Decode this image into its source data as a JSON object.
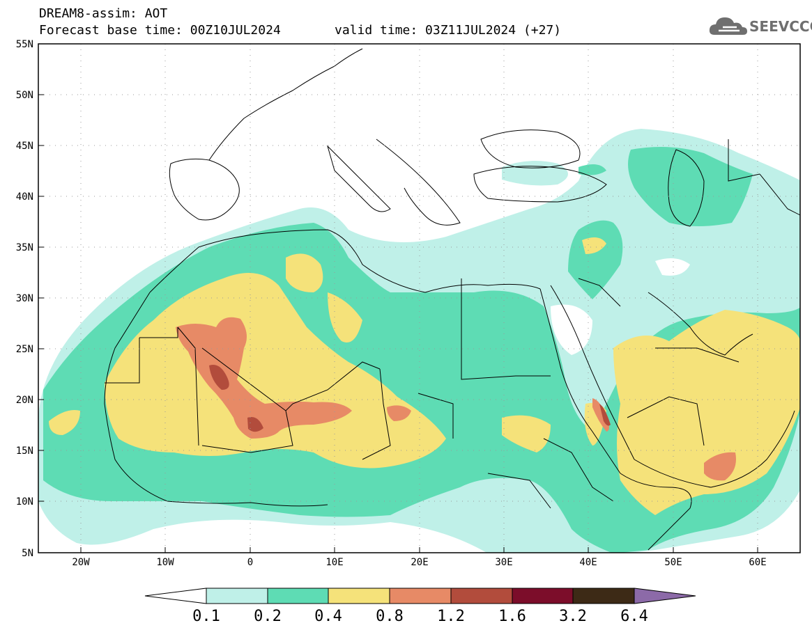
{
  "header": {
    "title": "DREAM8-assim: AOT",
    "base_time": "Forecast base time: 00Z10JUL2024",
    "valid_time": "valid time: 03Z11JUL2024 (+27)"
  },
  "logo": {
    "text": "SEEVCCC",
    "icon": "cloud-icon"
  },
  "map": {
    "lat_labels": [
      "55N",
      "50N",
      "45N",
      "40N",
      "35N",
      "30N",
      "25N",
      "20N",
      "15N",
      "10N",
      "5N"
    ],
    "lon_labels": [
      "20W",
      "10W",
      "0",
      "10E",
      "20E",
      "30E",
      "40E",
      "50E",
      "60E"
    ],
    "extent": {
      "lon": [
        -25,
        65
      ],
      "lat": [
        5,
        55
      ]
    },
    "grid": "dotted every 5 degrees"
  },
  "colorbar": {
    "labels": [
      "0.1",
      "0.2",
      "0.4",
      "0.8",
      "1.2",
      "1.6",
      "3.2",
      "6.4"
    ],
    "colors": [
      "#bff0e8",
      "#5edcb4",
      "#f5e27a",
      "#e78a66",
      "#b24c3c",
      "#7c0d2a",
      "#3d2a16",
      "#8c6aa8"
    ],
    "left_arrow_color": "#ffffff"
  },
  "colors": {
    "lvl1": "#bff0e8",
    "lvl2": "#5edcb4",
    "lvl3": "#f5e27a",
    "lvl4": "#e78a66",
    "lvl5": "#b24c3c"
  }
}
